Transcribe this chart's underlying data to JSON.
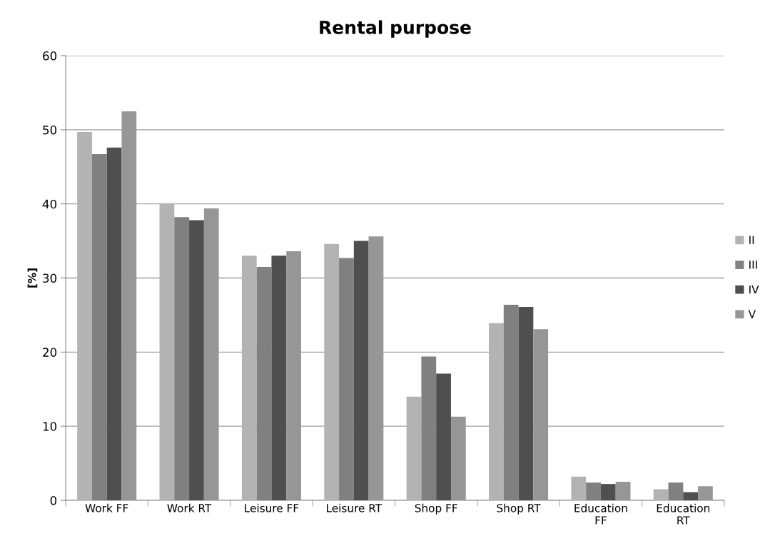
{
  "chart_data": {
    "type": "bar",
    "title": "Rental purpose",
    "ylabel": "[%]",
    "categories": [
      "Work FF",
      "Work RT",
      "Leisure FF",
      "Leisure RT",
      "Shop FF",
      "Shop RT",
      "Education\nFF",
      "Education\nRT"
    ],
    "series": [
      {
        "name": "II",
        "color": "#b3b3b3",
        "values": [
          49.7,
          40.1,
          33.0,
          34.6,
          14.0,
          23.9,
          3.2,
          1.5
        ]
      },
      {
        "name": "III",
        "color": "#808080",
        "values": [
          46.7,
          38.2,
          31.5,
          32.7,
          19.4,
          26.4,
          2.4,
          2.4
        ]
      },
      {
        "name": "IV",
        "color": "#4f4f4f",
        "values": [
          47.6,
          37.8,
          33.0,
          35.0,
          17.1,
          26.1,
          2.2,
          1.1
        ]
      },
      {
        "name": "V",
        "color": "#969696",
        "values": [
          52.5,
          39.4,
          33.6,
          35.6,
          11.3,
          23.1,
          2.5,
          1.9
        ]
      }
    ],
    "ylim": [
      0,
      60
    ],
    "yticks": [
      0,
      10,
      20,
      30,
      40,
      50,
      60
    ],
    "grid": "y",
    "legend": "right"
  }
}
